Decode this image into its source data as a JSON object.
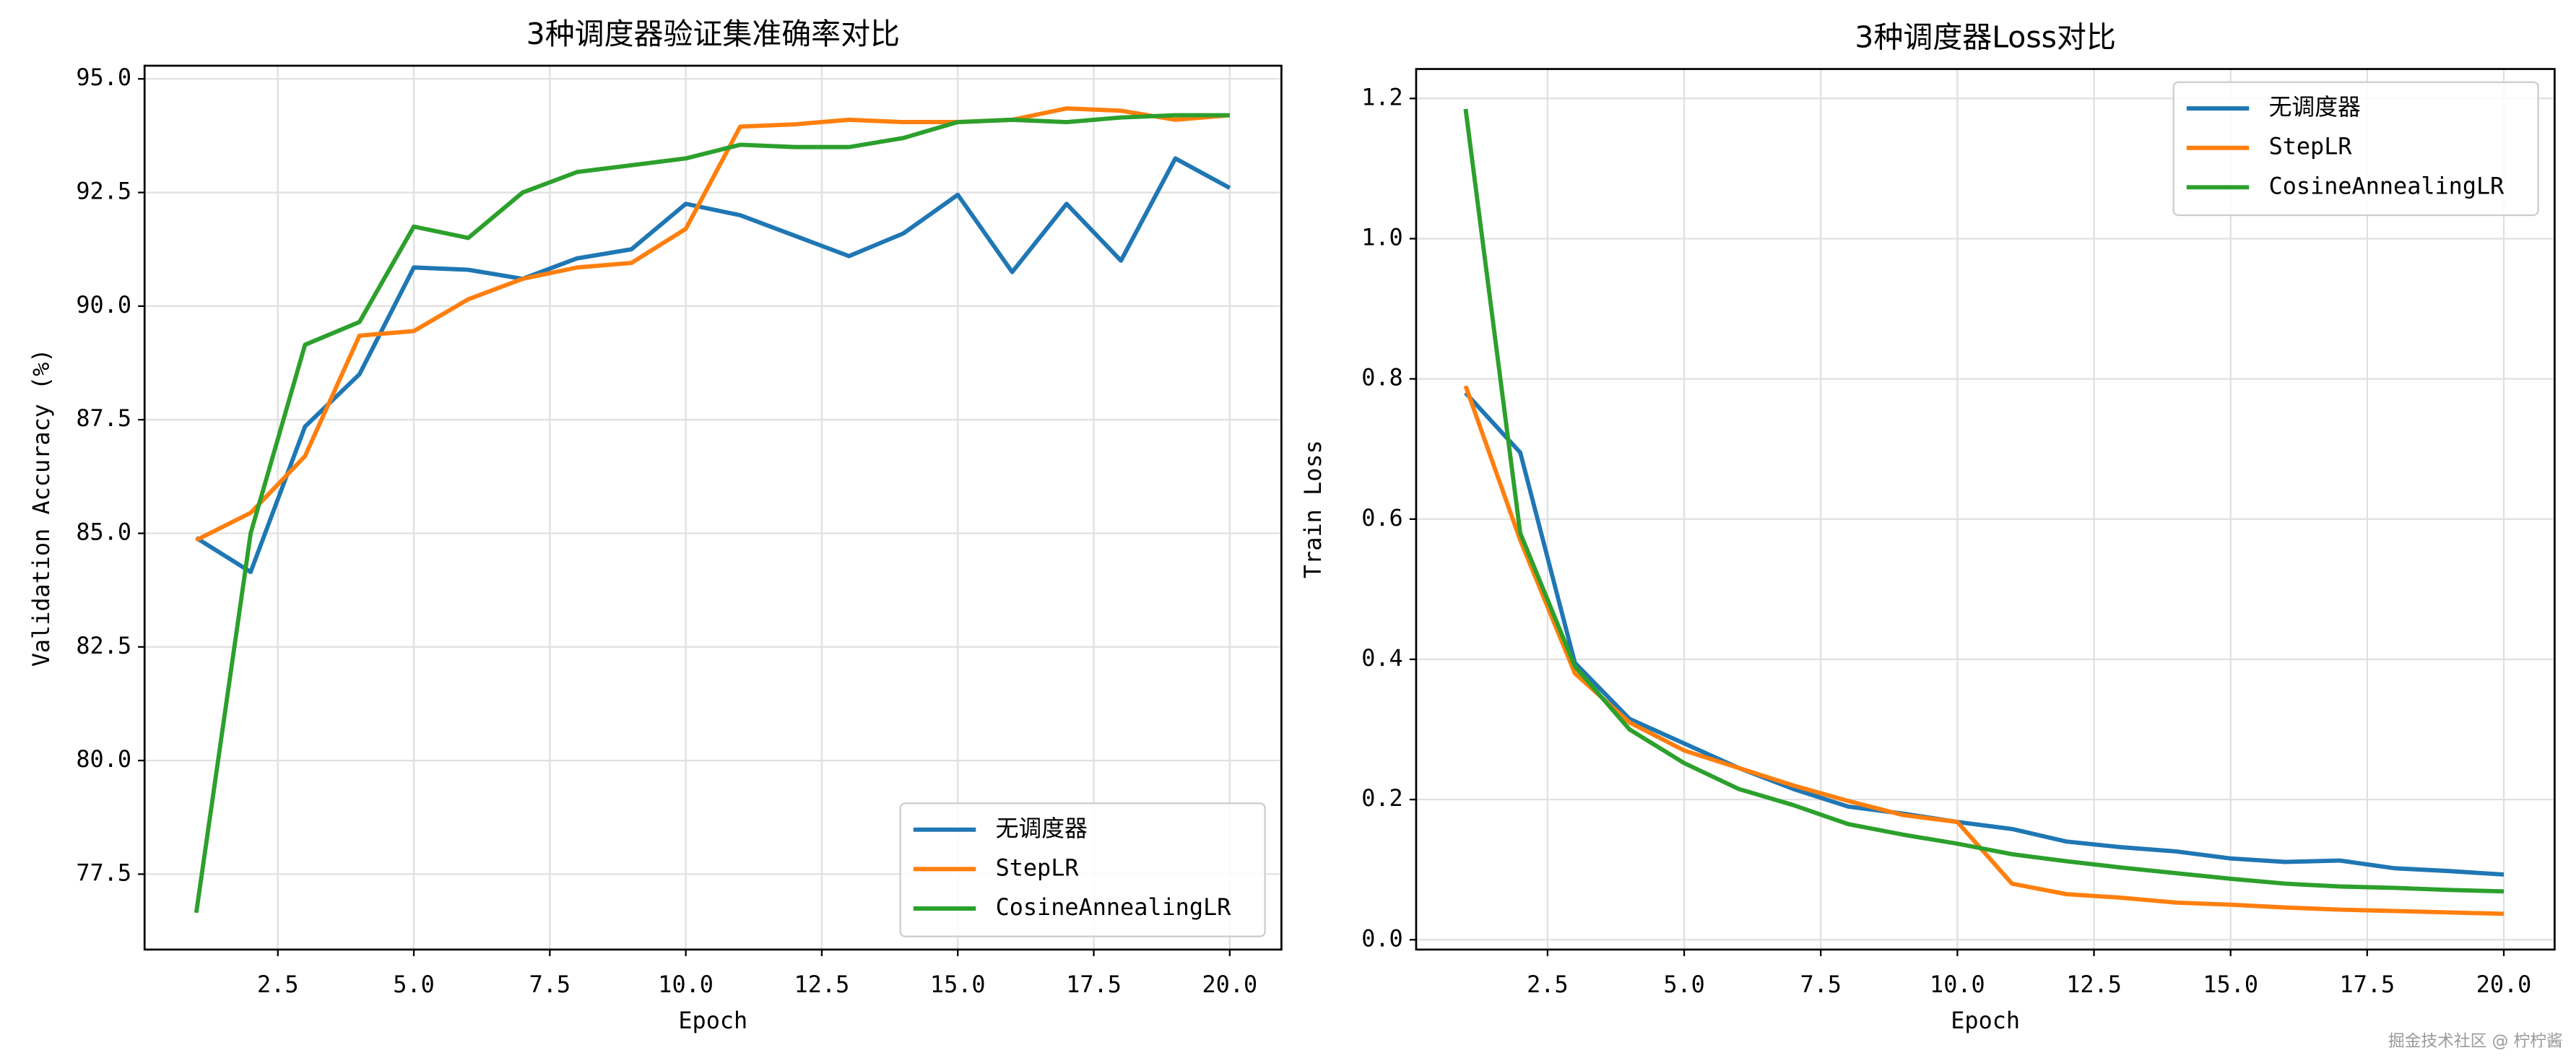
{
  "chart_data": [
    {
      "type": "line",
      "title": "3种调度器验证集准确率对比",
      "xlabel": "Epoch",
      "ylabel": "Validation Accuracy (%)",
      "x": [
        1,
        2,
        3,
        4,
        5,
        6,
        7,
        8,
        9,
        10,
        11,
        12,
        13,
        14,
        15,
        16,
        17,
        18,
        19,
        20
      ],
      "series": [
        {
          "name": "无调度器",
          "color": "#1f77b4",
          "values": [
            84.9,
            84.15,
            87.35,
            88.5,
            90.85,
            90.8,
            90.6,
            91.05,
            91.25,
            92.25,
            92.0,
            91.55,
            91.1,
            91.6,
            92.45,
            90.75,
            92.25,
            91.0,
            93.25,
            92.6
          ]
        },
        {
          "name": "StepLR",
          "color": "#ff7f0e",
          "values": [
            84.85,
            85.45,
            86.7,
            89.35,
            89.45,
            90.15,
            90.6,
            90.85,
            90.95,
            91.7,
            93.95,
            94.0,
            94.1,
            94.05,
            94.05,
            94.1,
            94.35,
            94.3,
            94.1,
            94.2
          ]
        },
        {
          "name": "CosineAnnealingLR",
          "color": "#2ca02c",
          "values": [
            76.65,
            85.0,
            89.15,
            89.65,
            91.75,
            91.5,
            92.5,
            92.95,
            93.1,
            93.25,
            93.55,
            93.5,
            93.5,
            93.7,
            94.05,
            94.1,
            94.05,
            94.15,
            94.2,
            94.2
          ]
        }
      ],
      "xlim": [
        0.05,
        20.95
      ],
      "ylim": [
        75.84,
        95.29
      ],
      "xticks": [
        2.5,
        {
          "value": 5,
          "label": "5.0"
        },
        7.5,
        {
          "value": 10,
          "label": "10.0"
        },
        12.5,
        {
          "value": 15,
          "label": "15.0"
        },
        17.5,
        {
          "value": 20,
          "label": "20.0"
        }
      ],
      "yticks": [
        77.5,
        {
          "value": 80,
          "label": "80.0"
        },
        82.5,
        {
          "value": 85,
          "label": "85.0"
        },
        87.5,
        {
          "value": 90,
          "label": "90.0"
        },
        92.5,
        {
          "value": 95,
          "label": "95.0"
        }
      ],
      "grid": true,
      "legend": "lower right"
    },
    {
      "type": "line",
      "title": "3种调度器Loss对比",
      "xlabel": "Epoch",
      "ylabel": "Train Loss",
      "x": [
        1,
        2,
        3,
        4,
        5,
        6,
        7,
        8,
        9,
        10,
        11,
        12,
        13,
        14,
        15,
        16,
        17,
        18,
        19,
        20
      ],
      "series": [
        {
          "name": "无调度器",
          "color": "#1f77b4",
          "values": [
            0.78,
            0.695,
            0.395,
            0.315,
            0.28,
            0.245,
            0.215,
            0.19,
            0.18,
            0.168,
            0.158,
            0.14,
            0.132,
            0.126,
            0.116,
            0.111,
            0.113,
            0.102,
            0.098,
            0.093
          ]
        },
        {
          "name": "StepLR",
          "color": "#ff7f0e",
          "values": [
            0.79,
            0.57,
            0.38,
            0.31,
            0.27,
            0.245,
            0.22,
            0.198,
            0.178,
            0.168,
            0.08,
            0.065,
            0.06,
            0.053,
            0.05,
            0.046,
            0.043,
            0.041,
            0.039,
            0.037
          ]
        },
        {
          "name": "CosineAnnealingLR",
          "color": "#2ca02c",
          "values": [
            1.185,
            0.58,
            0.39,
            0.3,
            0.252,
            0.215,
            0.192,
            0.165,
            0.15,
            0.137,
            0.122,
            0.112,
            0.103,
            0.095,
            0.087,
            0.08,
            0.076,
            0.074,
            0.071,
            0.069
          ]
        }
      ],
      "xlim": [
        0.095,
        20.93
      ],
      "ylim": [
        -0.014,
        1.242
      ],
      "xticks": [
        2.5,
        {
          "value": 5,
          "label": "5.0"
        },
        7.5,
        {
          "value": 10,
          "label": "10.0"
        },
        12.5,
        {
          "value": 15,
          "label": "15.0"
        },
        17.5,
        {
          "value": 20,
          "label": "20.0"
        }
      ],
      "yticks": [
        {
          "value": 0,
          "label": "0.0"
        },
        0.2,
        0.4,
        0.6,
        0.8,
        {
          "value": 1,
          "label": "1.0"
        },
        1.2
      ],
      "grid": true,
      "legend": "upper right"
    }
  ],
  "watermark": "掘金技术社区 @ 柠柠酱"
}
